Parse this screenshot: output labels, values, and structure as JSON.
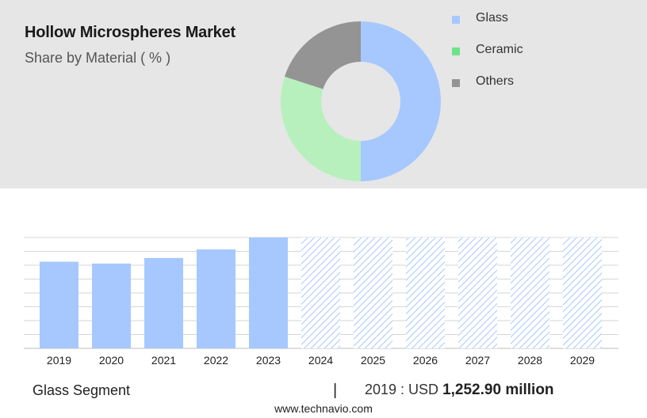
{
  "header": {
    "title": "Hollow Microspheres Market",
    "subtitle": "Share by Material ( % )"
  },
  "legend": [
    {
      "label": "Glass",
      "color": "#a6c8ff"
    },
    {
      "label": "Ceramic",
      "color": "#6ee38a"
    },
    {
      "label": "Others",
      "color": "#949494"
    }
  ],
  "chart_data": [
    {
      "type": "pie",
      "categories": [
        "Glass",
        "Ceramic",
        "Others"
      ],
      "values": [
        50,
        30,
        20
      ],
      "colors": [
        "#a6c8ff",
        "#b7f0bd",
        "#949494"
      ],
      "donut": true
    },
    {
      "type": "bar",
      "categories": [
        "2019",
        "2020",
        "2021",
        "2022",
        "2023",
        "2024",
        "2025",
        "2026",
        "2027",
        "2028",
        "2029"
      ],
      "values": [
        1252.9,
        1226,
        1307,
        1431,
        1603,
        null,
        null,
        null,
        null,
        null,
        null
      ],
      "forecast": [
        "2024",
        "2025",
        "2026",
        "2027",
        "2028",
        "2029"
      ],
      "ylim": [
        0,
        1603
      ],
      "grid": true,
      "bar_color": "#a6c8ff"
    }
  ],
  "footer": {
    "segment": "Glass Segment",
    "divider": "|",
    "value_prefix": "2019 : USD",
    "value_amount": "1,252.90 million",
    "source": "www.technavio.com"
  }
}
